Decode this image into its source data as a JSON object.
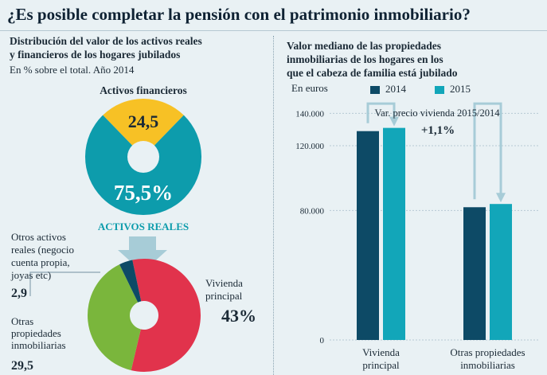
{
  "title": "¿Es posible completar la pensión con el patrimonio inmobiliario?",
  "left": {
    "title_line1": "Distribución del valor de los activos reales",
    "title_line2": "y financieros de los hogares jubilados",
    "subtitle": "En % sobre el total. Año 2014"
  },
  "right": {
    "title_line1": "Valor mediano de las propiedades",
    "title_line2": "inmobiliarias de los hogares en los",
    "title_line3": "que el cabeza de familia está jubilado",
    "units": "En euros",
    "legend_2014": "2014",
    "legend_2015": "2015",
    "var_label": "Var. precio vivienda 2015/2014",
    "var_value": "+1,1%"
  },
  "colors": {
    "financial": "#f7c125",
    "real": "#0d9cac",
    "dark_blue": "#0d4a66",
    "vivienda": "#e1334c",
    "otras": "#7ab63c",
    "light_teal": "#12a6b9",
    "arrow": "#a7ccd7"
  },
  "chart_data": [
    {
      "type": "pie",
      "title": "Distribución del valor de los activos reales y financieros de los hogares jubilados",
      "subtitle": "En % sobre el total. Año 2014",
      "slices": [
        {
          "label": "Activos financieros",
          "value": 24.5,
          "display": "24,5"
        },
        {
          "label": "ACTIVOS REALES",
          "value": 75.5,
          "display": "75,5%"
        }
      ]
    },
    {
      "type": "pie",
      "title": "ACTIVOS REALES",
      "slices": [
        {
          "label": "Otros activos reales (negocio cuenta propia, joyas etc)",
          "label_lines": [
            "Otros activos",
            "reales (negocio",
            "cuenta propia,",
            "joyas etc)"
          ],
          "value": 2.9,
          "display": "2,9"
        },
        {
          "label": "Vivienda principal",
          "label_lines": [
            "Vivienda",
            "principal"
          ],
          "value": 43,
          "display": "43%"
        },
        {
          "label": "Otras propiedades inmobiliarias",
          "label_lines": [
            "Otras",
            "propiedades",
            "inmobiliarias"
          ],
          "value": 29.5,
          "display": "29,5"
        }
      ]
    },
    {
      "type": "bar",
      "title": "Valor mediano de las propiedades inmobiliarias de los hogares en los que el cabeza de familia está jubilado",
      "ylabel": "En euros",
      "categories": [
        "Vivienda principal",
        "Otras propiedades inmobiliarias"
      ],
      "category_lines": [
        [
          "Vivienda",
          "principal"
        ],
        [
          "Otras propiedades",
          "inmobiliarias"
        ]
      ],
      "series": [
        {
          "name": "2014",
          "values": [
            129000,
            82000
          ]
        },
        {
          "name": "2015",
          "values": [
            131000,
            84000
          ]
        }
      ],
      "yticks": [
        0,
        80000,
        120000,
        140000
      ],
      "ytick_labels": [
        "0",
        "80.000",
        "120.000",
        "140.000"
      ],
      "ylim": [
        0,
        150000
      ]
    }
  ]
}
